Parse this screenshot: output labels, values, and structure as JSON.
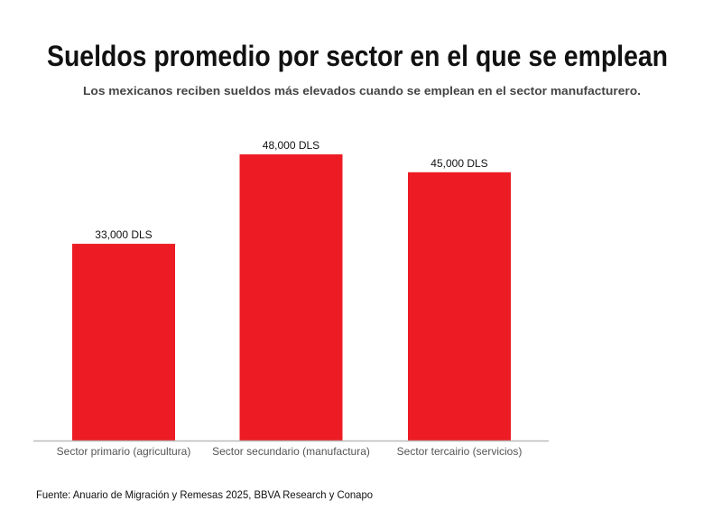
{
  "chart_data": {
    "type": "bar",
    "title": "Sueldos promedio por sector en el que se emplean",
    "subtitle": "Los mexicanos reciben sueldos más elevados cuando se emplean en el sector manufacturero.",
    "categories": [
      "Sector primario (agricultura)",
      "Sector secundario (manufactura)",
      "Sector tercairio (servicios)"
    ],
    "values": [
      33000,
      48000,
      45000
    ],
    "data_labels": [
      "33,000 DLS",
      "48,000 DLS",
      "45,000 DLS"
    ],
    "xlabel": "",
    "ylabel": "",
    "ylim": [
      0,
      48000
    ],
    "grid": false,
    "legend": "none",
    "bar_color": "#ed1c24",
    "axis_color": "#bbbbbb",
    "source": "Fuente: Anuario de Migración y Remesas 2025, BBVA Research y Conapo"
  }
}
